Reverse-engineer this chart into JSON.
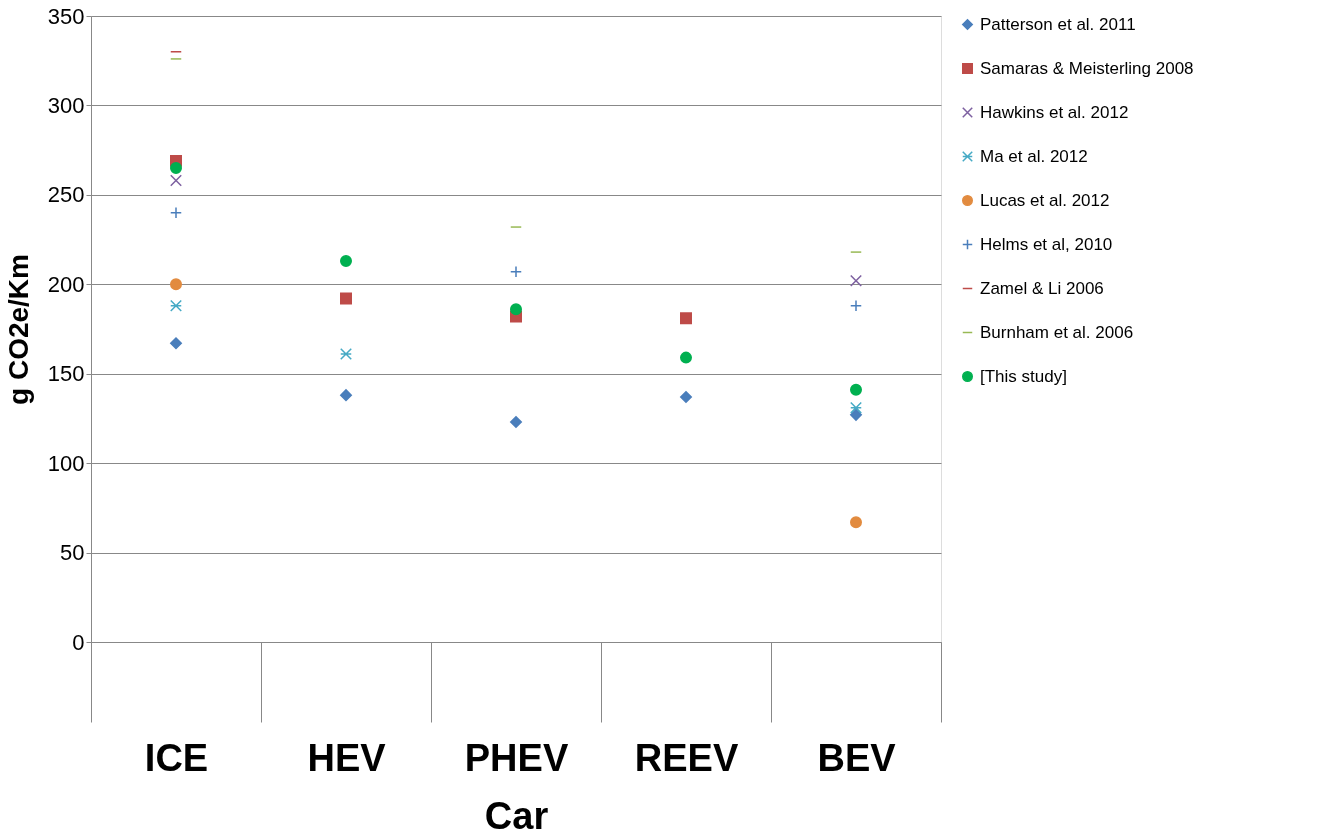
{
  "chart_data": {
    "type": "scatter",
    "xlabel": "Car",
    "ylabel": "g CO2e/Km",
    "categories": [
      "ICE",
      "HEV",
      "PHEV",
      "REEV",
      "BEV"
    ],
    "ylim": [
      0,
      350
    ],
    "yticks": [
      0,
      50,
      100,
      150,
      200,
      250,
      300,
      350
    ],
    "grid": "y",
    "legend": "right",
    "series": [
      {
        "name": "Patterson et al. 2011",
        "color": "#4a7ebb",
        "marker": "diamond",
        "values": [
          167,
          138,
          123,
          137,
          127
        ]
      },
      {
        "name": "Samaras & Meisterling 2008",
        "color": "#be4b48",
        "marker": "square",
        "values": [
          269,
          192,
          182,
          181,
          null
        ]
      },
      {
        "name": "Hawkins et al. 2012",
        "color": "#7d60a0",
        "marker": "x",
        "values": [
          258,
          null,
          null,
          null,
          202
        ]
      },
      {
        "name": "Ma et al. 2012",
        "color": "#46aac5",
        "marker": "cross",
        "values": [
          188,
          161,
          null,
          null,
          131
        ]
      },
      {
        "name": "Lucas et al. 2012",
        "color": "#e28b3f",
        "marker": "circle",
        "values": [
          200,
          null,
          null,
          null,
          67
        ]
      },
      {
        "name": "Helms et al, 2010",
        "color": "#4a7ebb",
        "marker": "plus",
        "values": [
          240,
          null,
          207,
          null,
          188
        ]
      },
      {
        "name": "Zamel & Li 2006",
        "color": "#be4b48",
        "values": [
          330,
          null,
          null,
          null,
          null
        ]
      },
      {
        "name": "Burnham et al. 2006",
        "color": "#98b954",
        "values": [
          326,
          null,
          232,
          null,
          218
        ]
      },
      {
        "name": "[This study]",
        "color": "#00b050",
        "marker": "circle",
        "values": [
          265,
          213,
          186,
          159,
          141
        ]
      }
    ]
  }
}
